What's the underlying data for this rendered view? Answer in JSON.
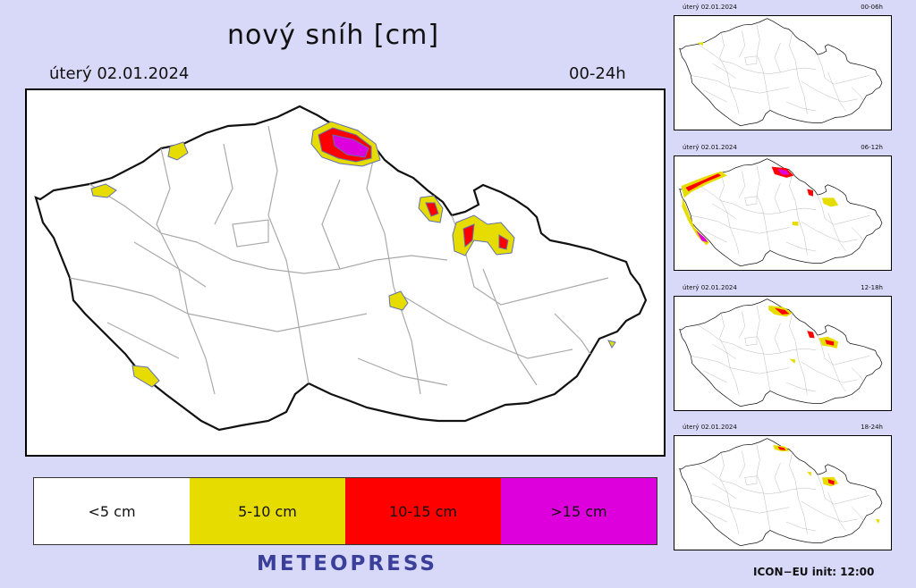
{
  "header": {
    "title": "nový sníh [cm]",
    "date": "úterý 02.01.2024",
    "period": "00-24h"
  },
  "legend": [
    {
      "label": "<5 cm",
      "color": "#ffffff"
    },
    {
      "label": "5-10 cm",
      "color": "#e6dc00"
    },
    {
      "label": "10-15 cm",
      "color": "#ff0000"
    },
    {
      "label": ">15 cm",
      "color": "#dd00dd"
    }
  ],
  "brand": "METEOPRESS",
  "model_info": "ICON−EU  init:  12:00",
  "panels": [
    {
      "date": "úterý 02.01.2024",
      "period": "00-06h"
    },
    {
      "date": "úterý 02.01.2024",
      "period": "06-12h"
    },
    {
      "date": "úterý 02.01.2024",
      "period": "12-18h"
    },
    {
      "date": "úterý 02.01.2024",
      "period": "18-24h"
    }
  ]
}
